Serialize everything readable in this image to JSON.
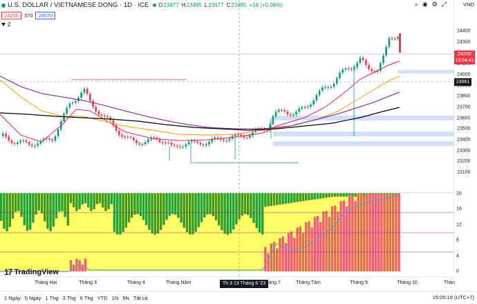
{
  "header": {
    "symbol": "U.S. DOLLAR / VIETNAMESE DONG · 1D · ICE",
    "ohlc": {
      "o_label": "O",
      "o_value": "23477",
      "h_label": "H",
      "h_value": "23495",
      "l_label": "L",
      "l_value": "23477",
      "c_label": "C",
      "c_value": "23495",
      "change": "+18 (+0.08%)"
    },
    "bid": "24200",
    "spread": "370",
    "ask": "24570",
    "indicator_count": "2",
    "currency": "VND",
    "top_icons": [
      "search-icon",
      "camera-icon",
      "settings-icon",
      "fullscreen-icon"
    ]
  },
  "price_axis": {
    "ticks": [
      "24400",
      "24300",
      "24200",
      "24100",
      "24000",
      "23900",
      "23800",
      "23700",
      "23600",
      "23500",
      "23400",
      "23300",
      "23200",
      "23100"
    ],
    "last_price": "24200",
    "countdown": "13:54:41",
    "crosshair_price": "23961"
  },
  "osc_axis": {
    "ticks": [
      "20",
      "16",
      "12",
      "8",
      "4",
      "0"
    ]
  },
  "time_axis": {
    "ticks": [
      "Tháng Hai",
      "Tháng 3",
      "Tháng 4",
      "Tháng Năm",
      "Tháng 7",
      "Tháng Tám",
      "Tháng 9",
      "Tháng 10",
      "Thán"
    ],
    "crosshair_date": "Th 3 13 Tháng 6 '23"
  },
  "branding": {
    "logo_mark": "17",
    "logo_text": "TradingView"
  },
  "bottom_bar": {
    "timeframes": [
      "1 Ngày",
      "5 Ngày",
      "1 Thg",
      "3 Thg",
      "6 Thg",
      "YTD",
      "1N",
      "5N",
      "Tất cả"
    ],
    "clock": "15:05:19 (UTC+7)"
  },
  "colors": {
    "up": "#089981",
    "down": "#f23645",
    "ma_short": "#e91e63",
    "ma_mid": "#f59f00",
    "ma_long": "#880e9b",
    "ma_longest": "#000000",
    "osc_green": "#2e9d32",
    "osc_yellow": "#ffff66",
    "osc_red": "#f06070"
  }
}
